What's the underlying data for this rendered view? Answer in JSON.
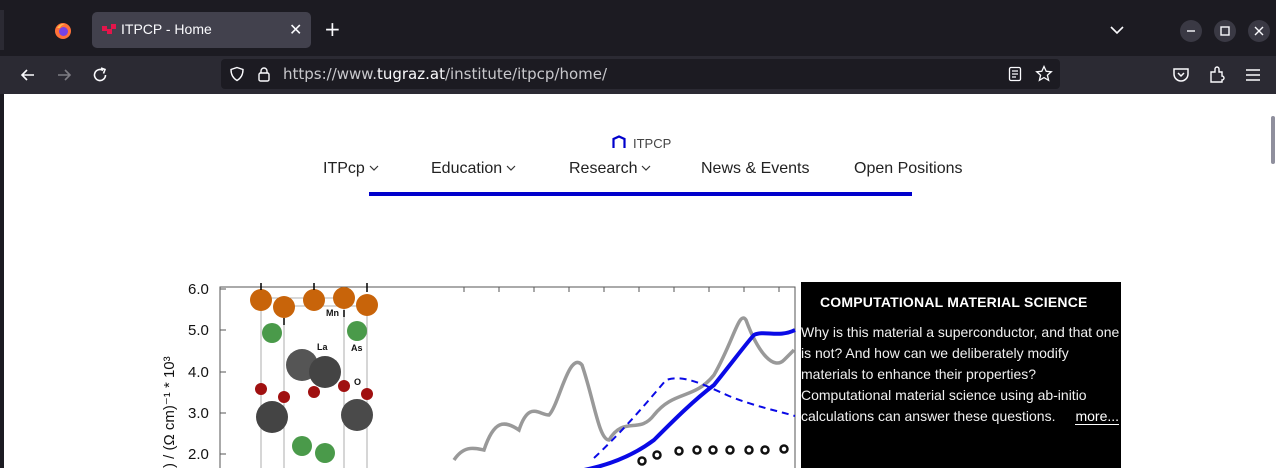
{
  "browser": {
    "tab_title": "ITPCP - Home",
    "tab_close": "✕",
    "new_tab": "+",
    "url_prefix": "https://www.",
    "url_domain": "tugraz.at",
    "url_path": "/institute/itpcp/home/"
  },
  "site": {
    "logo_text": "ITPCP",
    "nav": [
      {
        "label": "ITPcp",
        "has_dropdown": true
      },
      {
        "label": "Education",
        "has_dropdown": true
      },
      {
        "label": "Research",
        "has_dropdown": true
      },
      {
        "label": "News & Events",
        "has_dropdown": false
      },
      {
        "label": "Open Positions",
        "has_dropdown": false
      }
    ],
    "accent_color": "#0000cc"
  },
  "figure": {
    "y_ticks": [
      "6.0",
      "5.0",
      "4.0",
      "3.0",
      "2.0"
    ],
    "y_label": ") / (Ω cm)⁻¹ * 10³",
    "atom_labels": {
      "mn": "Mn",
      "la": "La",
      "as": "As",
      "o": "O"
    }
  },
  "feature": {
    "heading": "COMPUTATIONAL MATERIAL SCIENCE",
    "body": "Why is this material a superconductor, and that one is not? And how can we deliberately modify materials to enhance their properties? Computational material science using ab-initio calculations can answer these questions.",
    "more_label": "more..."
  }
}
